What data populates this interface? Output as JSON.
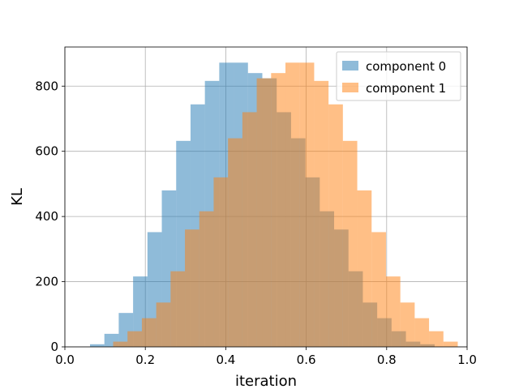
{
  "chart_data": {
    "type": "bar",
    "subtype": "histogram-overlay",
    "title": "",
    "xlabel": "iteration",
    "ylabel": "KL",
    "xlim": [
      0.0,
      1.0
    ],
    "ylim": [
      0,
      920
    ],
    "x_ticks": [
      "0.0",
      "0.2",
      "0.4",
      "0.6",
      "0.8",
      "1.0"
    ],
    "y_ticks": [
      "0",
      "200",
      "400",
      "600",
      "800"
    ],
    "grid": true,
    "legend_position": "top-right",
    "bar_alpha": 0.5,
    "series": [
      {
        "name": "component 0",
        "color": "#1f77b4",
        "bin_start": 0.0625,
        "bin_width": 0.0357,
        "values": [
          8,
          40,
          104,
          216,
          352,
          480,
          632,
          744,
          816,
          872,
          872,
          840,
          824,
          720,
          640,
          520,
          416,
          360,
          232,
          136,
          88,
          48,
          16,
          8
        ]
      },
      {
        "name": "component 1",
        "color": "#ff7f0e",
        "bin_start": 0.12,
        "bin_width": 0.0357,
        "values": [
          16,
          48,
          88,
          136,
          232,
          360,
          416,
          520,
          640,
          720,
          824,
          840,
          872,
          872,
          816,
          744,
          632,
          480,
          352,
          216,
          136,
          88,
          48,
          16
        ]
      }
    ]
  }
}
